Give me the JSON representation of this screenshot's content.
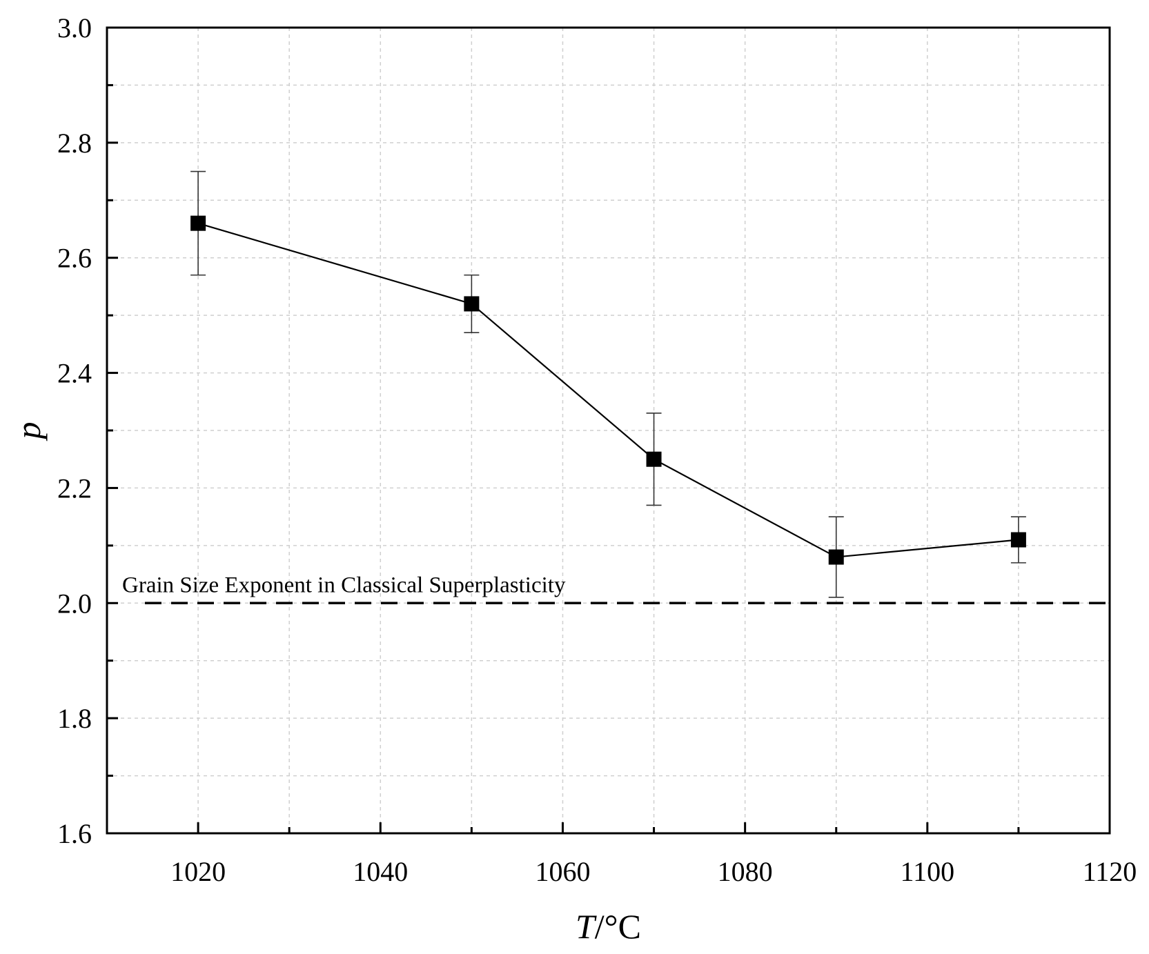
{
  "chart_data": {
    "type": "line",
    "title": "",
    "xlabel": "T/°C",
    "xlabel_var": "T",
    "xlabel_unit": "/°C",
    "ylabel": "p",
    "xlim": [
      1010,
      1120
    ],
    "ylim": [
      1.6,
      3.0
    ],
    "x_ticks": [
      1020,
      1040,
      1060,
      1080,
      1100,
      1120
    ],
    "x_tick_labels": [
      "1020",
      "1040",
      "1060",
      "1080",
      "1100",
      "1120"
    ],
    "y_ticks": [
      1.6,
      1.8,
      2.0,
      2.2,
      2.4,
      2.6,
      2.8,
      3.0
    ],
    "y_tick_labels": [
      "1.6",
      "1.8",
      "2.0",
      "2.2",
      "2.4",
      "2.6",
      "2.8",
      "3.0"
    ],
    "grid": true,
    "series": [
      {
        "marker": "square",
        "color": "#000000",
        "x": [
          1020,
          1050,
          1070,
          1090,
          1110
        ],
        "y": [
          2.66,
          2.52,
          2.25,
          2.08,
          2.11
        ],
        "error_low": [
          2.57,
          2.47,
          2.17,
          2.01,
          2.07
        ],
        "error_high": [
          2.75,
          2.57,
          2.33,
          2.15,
          2.15
        ]
      }
    ],
    "reference_line": {
      "y": 2.0,
      "style": "dashed",
      "label": "Grain Size Exponent in Classical Superplasticity"
    }
  }
}
